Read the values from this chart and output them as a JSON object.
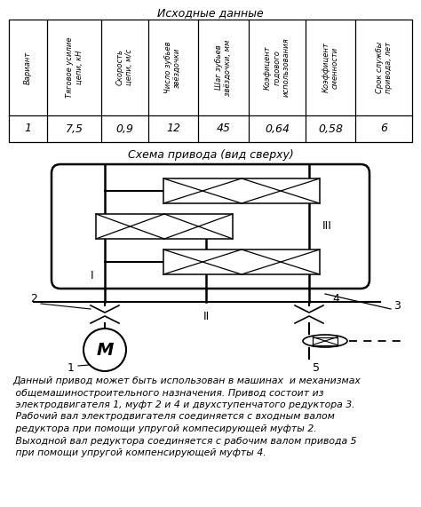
{
  "title_table": "Исходные данные",
  "title_diagram": "Схема привода (вид сверху)",
  "table_headers": [
    "Вариант",
    "Тяговое усилие\nцепи, кН",
    "Скорость\nцепи, м/с",
    "Число зубьев\nзвёздочки",
    "Шаг зубьев\nзвёздочки, мм",
    "Коэфицент\nгодового\nиспользования",
    "Коэффицент\nсменности",
    "Срок службы\nпривода, лет"
  ],
  "table_values": [
    "1",
    "7,5",
    "0,9",
    "12",
    "45",
    "0,64",
    "0,58",
    "6"
  ],
  "description_lines": [
    "Данный привод может быть использован в машинах  и механизмах",
    " общемашиностроительного назначения. Привод состоит из",
    " электродвигателя 1, муфт 2 и 4 и двухступенчатого редуктора 3.",
    " Рабочий вал электродвигателя соединяется с входным валом",
    " редуктора при помощи упругой компесирующей муфты 2.",
    " Выходной вал редуктора соединяется с рабочим валом привода 5",
    " при помощи упругой компенсирующей муфты 4."
  ],
  "bg_color": "#ffffff"
}
